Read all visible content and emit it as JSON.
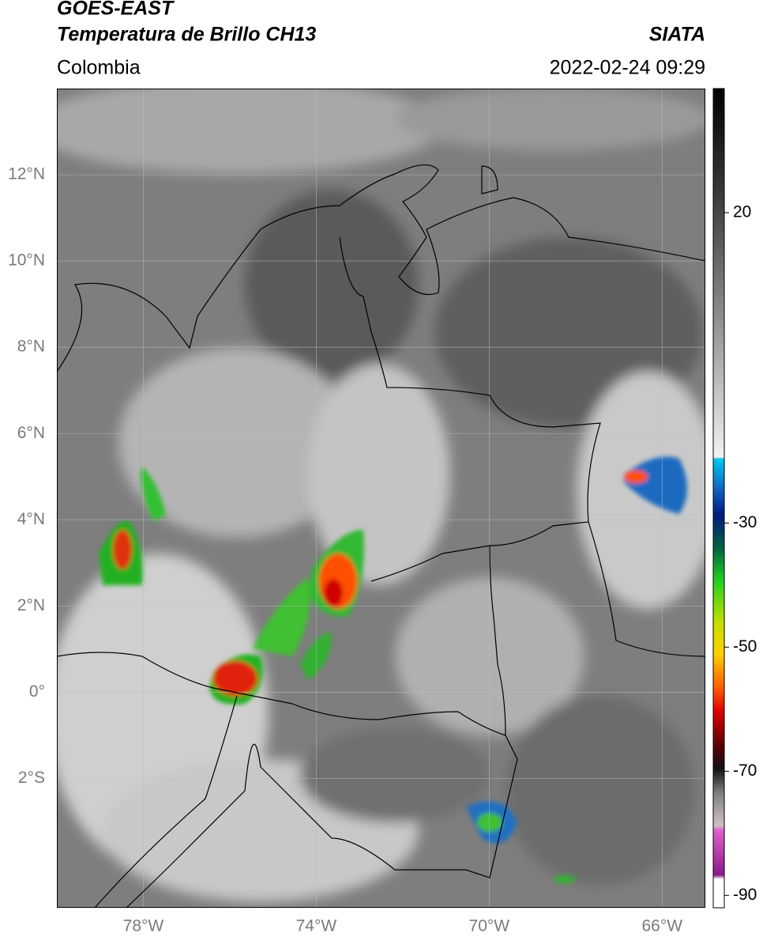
{
  "header": {
    "title": "GOES-EAST",
    "subtitle": "Temperatura de Brillo CH13",
    "region": "Colombia",
    "source": "SIATA",
    "datetime": "2022-02-24 09:29"
  },
  "map": {
    "lon_range": [
      -80,
      -65
    ],
    "lat_range": [
      -5,
      14
    ],
    "lat_ticks": [
      {
        "value": 12,
        "label": "12°N"
      },
      {
        "value": 10,
        "label": "10°N"
      },
      {
        "value": 8,
        "label": "8°N"
      },
      {
        "value": 6,
        "label": "6°N"
      },
      {
        "value": 4,
        "label": "4°N"
      },
      {
        "value": 2,
        "label": "2°N"
      },
      {
        "value": 0,
        "label": "0°"
      },
      {
        "value": -2,
        "label": "2°S"
      }
    ],
    "lon_ticks": [
      {
        "value": -78,
        "label": "78°W"
      },
      {
        "value": -74,
        "label": "74°W"
      },
      {
        "value": -70,
        "label": "70°W"
      },
      {
        "value": -66,
        "label": "66°W"
      }
    ]
  },
  "colorbar": {
    "range": [
      -92,
      40
    ],
    "ticks": [
      20,
      -30,
      -50,
      -70,
      -90
    ]
  }
}
